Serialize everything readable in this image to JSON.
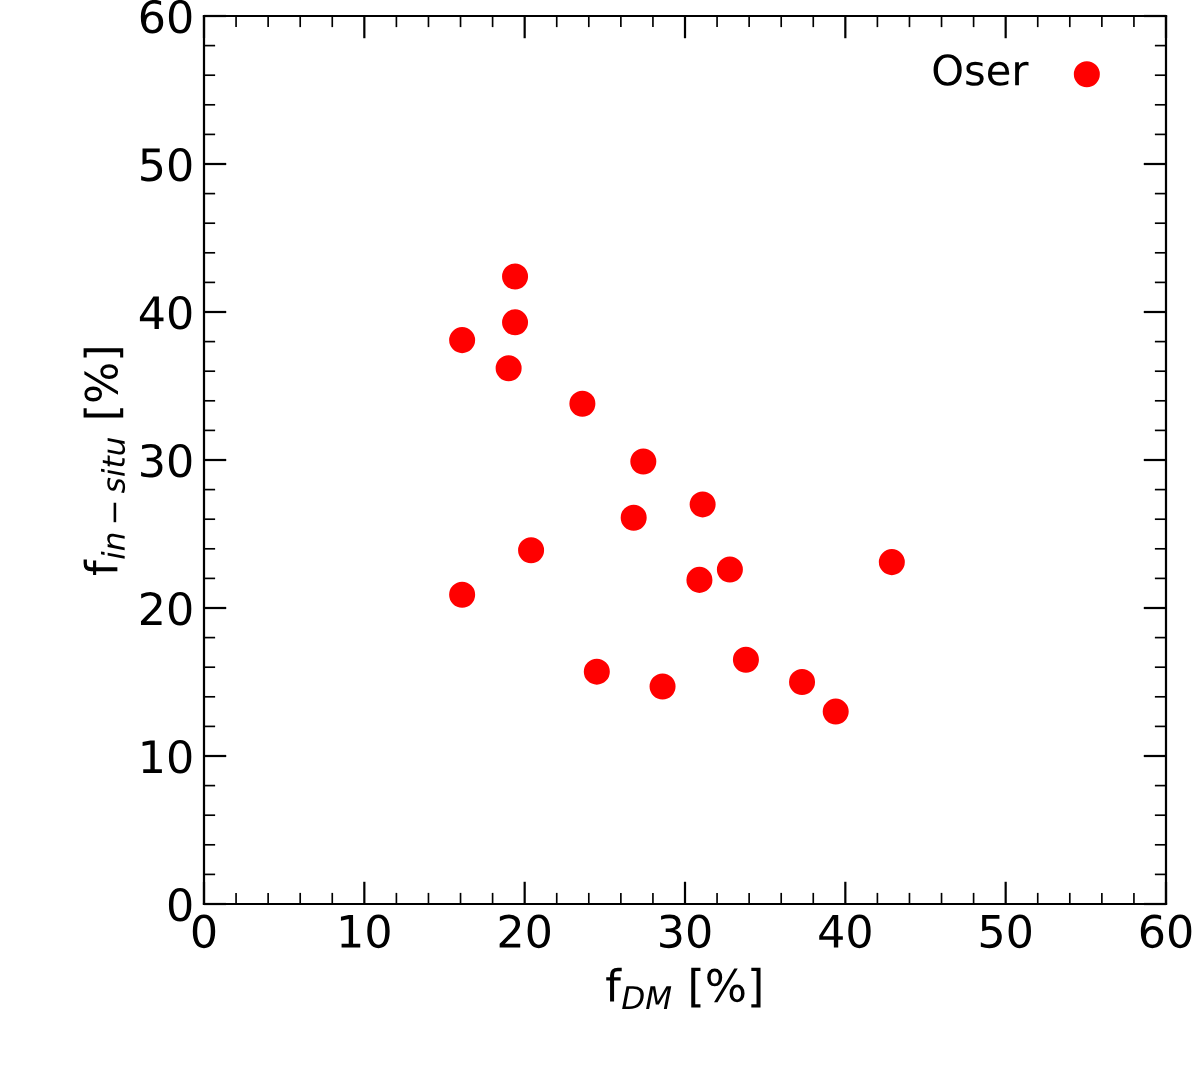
{
  "chart_data": {
    "type": "scatter",
    "xlabel": "f$_{DM}$ [%]",
    "ylabel": "f$_{in−situ}$ [%]",
    "x": [
      16.1,
      19.0,
      19.4,
      19.4,
      23.6,
      27.4,
      26.8,
      31.1,
      20.4,
      16.1,
      30.9,
      32.8,
      42.9,
      24.5,
      28.6,
      33.8,
      37.3,
      39.4
    ],
    "series": [
      {
        "name": "Oser",
        "color": "#ff0000",
        "values": [
          38.1,
          36.2,
          42.4,
          39.3,
          33.8,
          29.9,
          26.1,
          27.0,
          23.9,
          20.9,
          21.9,
          22.6,
          23.1,
          15.7,
          14.7,
          16.5,
          15.0,
          13.0
        ]
      }
    ],
    "xlim": [
      0,
      60
    ],
    "ylim": [
      0,
      60
    ],
    "xticks": [
      0,
      10,
      20,
      30,
      40,
      50,
      60
    ],
    "yticks": [
      0,
      10,
      20,
      30,
      40,
      50,
      60
    ],
    "marker": "circle",
    "legend": "top right",
    "grid": false
  }
}
